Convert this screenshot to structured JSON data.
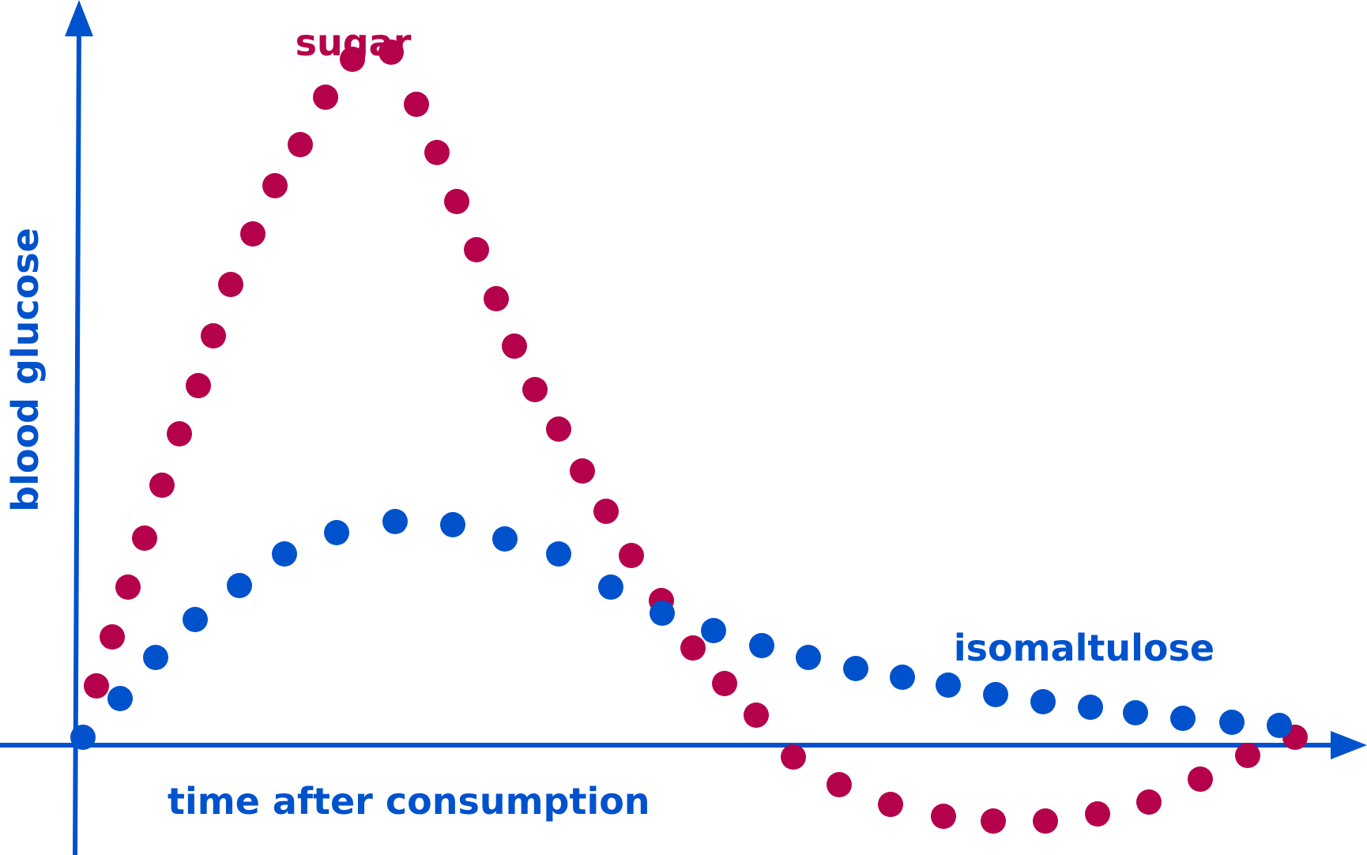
{
  "chart_data": {
    "type": "scatter",
    "title": "",
    "xlabel": "time after consumption",
    "ylabel": "blood glucose",
    "grid": false,
    "legend": "none; series are labeled directly on the chart",
    "colors": {
      "axes": "#0052cc",
      "sugar": "#b5004b",
      "isomaltulose": "#0052cc"
    },
    "xlim": [
      0,
      1520
    ],
    "ylim": [
      -120,
      920
    ],
    "series": [
      {
        "name": "sugar",
        "color": "#b5004b",
        "points": [
          [
            25,
            75
          ],
          [
            45,
            137
          ],
          [
            65,
            200
          ],
          [
            86,
            262
          ],
          [
            108,
            329
          ],
          [
            130,
            394
          ],
          [
            154,
            455
          ],
          [
            173,
            518
          ],
          [
            195,
            583
          ],
          [
            223,
            647
          ],
          [
            251,
            708
          ],
          [
            283,
            760
          ],
          [
            315,
            820
          ],
          [
            349,
            868
          ],
          [
            398,
            877
          ],
          [
            430,
            811
          ],
          [
            456,
            750
          ],
          [
            481,
            688
          ],
          [
            506,
            627
          ],
          [
            531,
            565
          ],
          [
            554,
            505
          ],
          [
            580,
            450
          ],
          [
            610,
            400
          ],
          [
            640,
            347
          ],
          [
            670,
            296
          ],
          [
            702,
            240
          ],
          [
            740,
            183
          ],
          [
            780,
            123
          ],
          [
            820,
            78
          ],
          [
            860,
            38
          ],
          [
            907,
            -15
          ],
          [
            965,
            -50
          ],
          [
            1030,
            -75
          ],
          [
            1097,
            -90
          ],
          [
            1160,
            -96
          ],
          [
            1226,
            -96
          ],
          [
            1292,
            -87
          ],
          [
            1357,
            -72
          ],
          [
            1422,
            -43
          ],
          [
            1482,
            -13
          ],
          [
            1542,
            10
          ]
        ]
      },
      {
        "name": "isomaltulose",
        "color": "#0052cc",
        "points": [
          [
            8,
            10
          ],
          [
            55,
            59
          ],
          [
            100,
            111
          ],
          [
            150,
            159
          ],
          [
            206,
            202
          ],
          [
            263,
            242
          ],
          [
            329,
            269
          ],
          [
            403,
            283
          ],
          [
            476,
            279
          ],
          [
            542,
            261
          ],
          [
            610,
            242
          ],
          [
            676,
            200
          ],
          [
            741,
            167
          ],
          [
            806,
            145
          ],
          [
            867,
            126
          ],
          [
            926,
            111
          ],
          [
            986,
            97
          ],
          [
            1045,
            86
          ],
          [
            1103,
            76
          ],
          [
            1163,
            64
          ],
          [
            1223,
            55
          ],
          [
            1283,
            48
          ],
          [
            1340,
            41
          ],
          [
            1400,
            34
          ],
          [
            1462,
            29
          ],
          [
            1522,
            25
          ]
        ]
      }
    ]
  }
}
